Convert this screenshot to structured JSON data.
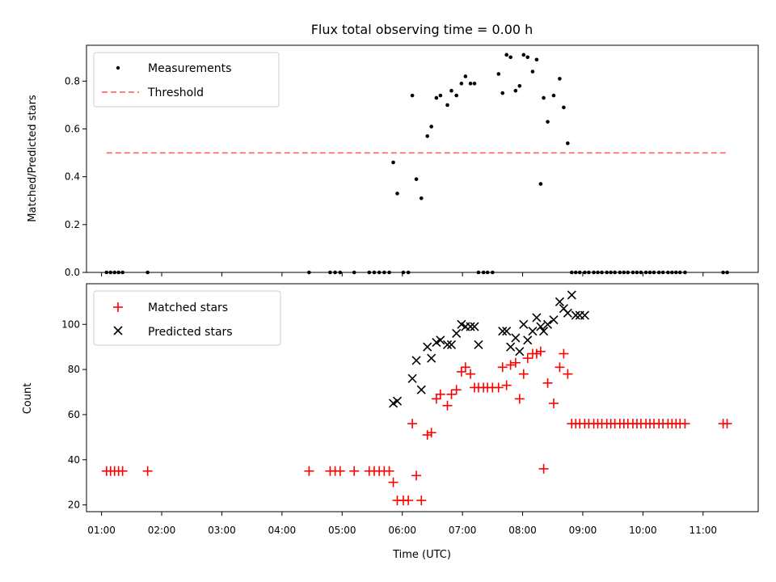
{
  "title": "Flux total observing time = 0.00 h",
  "colors": {
    "measurements": "#000000",
    "threshold": "#ff7f7f",
    "matched": "#ff0000",
    "predicted": "#000000"
  },
  "chart_data": [
    {
      "type": "scatter",
      "title": "Flux total observing time = 0.00 h",
      "ylabel": "Matched/Predicted stars",
      "xlim": [
        "00:45",
        "11:55"
      ],
      "ylim": [
        0,
        0.95
      ],
      "yticks": [
        "0.0",
        "0.2",
        "0.4",
        "0.6",
        "0.8"
      ],
      "grid": false,
      "legend_position": "top-left",
      "series": [
        {
          "name": "Measurements",
          "marker": "dot",
          "x": [
            "01:05",
            "01:09",
            "01:13",
            "01:17",
            "01:21",
            "01:46",
            "04:27",
            "04:48",
            "04:53",
            "04:58",
            "05:12",
            "05:27",
            "05:32",
            "05:37",
            "05:42",
            "05:47",
            "05:51",
            "05:55",
            "06:01",
            "06:06",
            "06:10",
            "06:14",
            "06:19",
            "06:25",
            "06:29",
            "06:34",
            "06:38",
            "06:45",
            "06:49",
            "06:54",
            "06:59",
            "07:03",
            "07:08",
            "07:12",
            "07:16",
            "07:21",
            "07:25",
            "07:30",
            "07:36",
            "07:40",
            "07:44",
            "07:48",
            "07:53",
            "07:57",
            "08:01",
            "08:05",
            "08:10",
            "08:14",
            "08:18",
            "08:21",
            "08:25",
            "08:31",
            "08:37",
            "08:41",
            "08:45",
            "08:49",
            "08:53",
            "08:57",
            "09:02",
            "09:06",
            "09:11",
            "09:15",
            "09:19",
            "09:24",
            "09:28",
            "09:32",
            "09:37",
            "09:41",
            "09:45",
            "09:50",
            "09:54",
            "09:58",
            "10:03",
            "10:07",
            "10:11",
            "10:16",
            "10:20",
            "10:25",
            "10:29",
            "10:33",
            "10:37",
            "10:42",
            "11:20",
            "11:24"
          ],
          "y": [
            0,
            0,
            0,
            0,
            0,
            0,
            0,
            0,
            0,
            0,
            0,
            0,
            0,
            0,
            0,
            0,
            0.46,
            0.33,
            0,
            0,
            0.74,
            0.39,
            0.31,
            0.57,
            0.61,
            0.73,
            0.74,
            0.7,
            0.76,
            0.74,
            0.79,
            0.82,
            0.79,
            0.79,
            0,
            0,
            0,
            0,
            0.83,
            0.75,
            0.91,
            0.9,
            0.76,
            0.78,
            0.91,
            0.9,
            0.84,
            0.89,
            0.37,
            0.73,
            0.63,
            0.74,
            0.81,
            0.69,
            0.54,
            0,
            0,
            0,
            0,
            0,
            0,
            0,
            0,
            0,
            0,
            0,
            0,
            0,
            0,
            0,
            0,
            0,
            0,
            0,
            0,
            0,
            0,
            0,
            0,
            0,
            0,
            0,
            0,
            0
          ]
        },
        {
          "name": "Threshold",
          "type": "line",
          "style": "dashed",
          "x": [
            "01:05",
            "11:24"
          ],
          "y": [
            0.5,
            0.5
          ]
        }
      ]
    },
    {
      "type": "scatter",
      "xlabel": "Time (UTC)",
      "ylabel": "Count",
      "xlim": [
        "00:45",
        "11:55"
      ],
      "ylim": [
        17,
        118
      ],
      "yticks": [
        "20",
        "40",
        "60",
        "80",
        "100"
      ],
      "xticks": [
        "01:00",
        "02:00",
        "03:00",
        "04:00",
        "05:00",
        "06:00",
        "07:00",
        "08:00",
        "09:00",
        "10:00",
        "11:00"
      ],
      "grid": false,
      "legend_position": "top-left",
      "series": [
        {
          "name": "Matched stars",
          "marker": "plus",
          "x": [
            "01:05",
            "01:09",
            "01:13",
            "01:17",
            "01:21",
            "01:46",
            "04:27",
            "04:48",
            "04:53",
            "04:58",
            "05:12",
            "05:27",
            "05:32",
            "05:37",
            "05:42",
            "05:47",
            "05:51",
            "05:55",
            "06:01",
            "06:06",
            "06:10",
            "06:14",
            "06:19",
            "06:25",
            "06:29",
            "06:34",
            "06:38",
            "06:45",
            "06:49",
            "06:54",
            "06:59",
            "07:03",
            "07:08",
            "07:12",
            "07:16",
            "07:21",
            "07:25",
            "07:30",
            "07:36",
            "07:40",
            "07:44",
            "07:48",
            "07:53",
            "07:57",
            "08:01",
            "08:05",
            "08:10",
            "08:14",
            "08:18",
            "08:21",
            "08:25",
            "08:31",
            "08:37",
            "08:41",
            "08:45",
            "08:49",
            "08:53",
            "08:57",
            "09:02",
            "09:06",
            "09:11",
            "09:15",
            "09:19",
            "09:24",
            "09:28",
            "09:32",
            "09:37",
            "09:41",
            "09:45",
            "09:50",
            "09:54",
            "09:58",
            "10:03",
            "10:07",
            "10:11",
            "10:16",
            "10:20",
            "10:25",
            "10:29",
            "10:33",
            "10:37",
            "10:42",
            "11:20",
            "11:24"
          ],
          "y": [
            35,
            35,
            35,
            35,
            35,
            35,
            35,
            35,
            35,
            35,
            35,
            35,
            35,
            35,
            35,
            35,
            30,
            22,
            22,
            22,
            56,
            33,
            22,
            51,
            52,
            67,
            69,
            64,
            69,
            71,
            79,
            81,
            78,
            72,
            72,
            72,
            72,
            72,
            72,
            81,
            73,
            82,
            83,
            67,
            78,
            85,
            87,
            87,
            88,
            36,
            74,
            65,
            81,
            87,
            78,
            56,
            56,
            56,
            56,
            56,
            56,
            56,
            56,
            56,
            56,
            56,
            56,
            56,
            56,
            56,
            56,
            56,
            56,
            56,
            56,
            56,
            56,
            56,
            56,
            56,
            56,
            56,
            56,
            56
          ]
        },
        {
          "name": "Predicted stars",
          "marker": "x",
          "x": [
            "05:51",
            "05:55",
            "06:10",
            "06:14",
            "06:19",
            "06:25",
            "06:29",
            "06:34",
            "06:38",
            "06:45",
            "06:49",
            "06:54",
            "06:59",
            "07:03",
            "07:08",
            "07:12",
            "07:16",
            "07:40",
            "07:44",
            "07:48",
            "07:53",
            "07:57",
            "08:01",
            "08:05",
            "08:10",
            "08:14",
            "08:18",
            "08:21",
            "08:25",
            "08:31",
            "08:37",
            "08:41",
            "08:45",
            "08:49",
            "08:53",
            "08:57",
            "09:02"
          ],
          "y": [
            65,
            66,
            76,
            84,
            71,
            90,
            85,
            92,
            93,
            91,
            91,
            96,
            100,
            99,
            99,
            99,
            91,
            97,
            97,
            90,
            94,
            88,
            100,
            93,
            97,
            103,
            99,
            97,
            100,
            102,
            110,
            107,
            105,
            113,
            104,
            104,
            104
          ]
        }
      ]
    }
  ]
}
